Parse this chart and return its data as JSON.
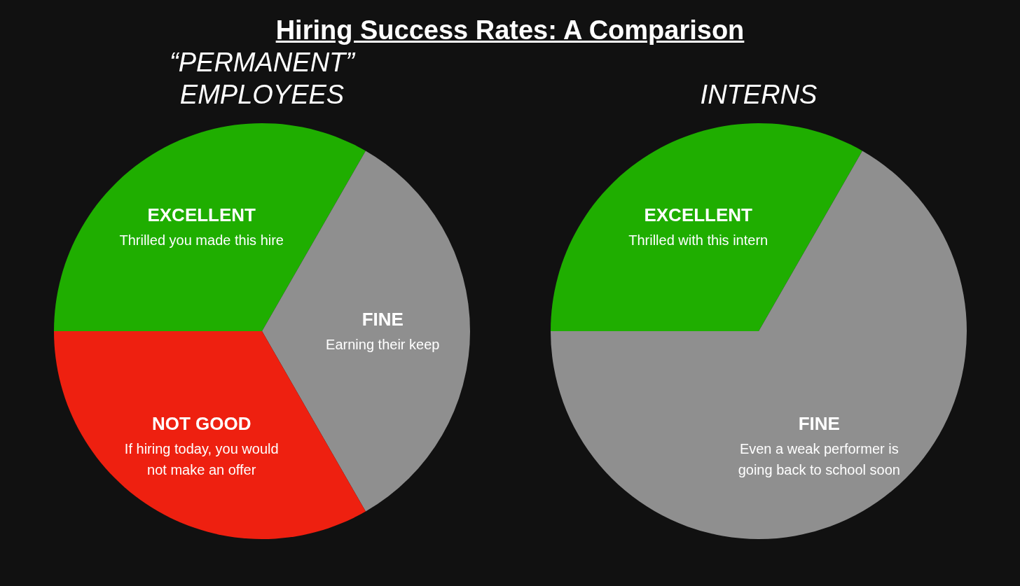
{
  "chart_data": [
    {
      "type": "other",
      "title": "Hiring Success Rates: A Comparison"
    },
    {
      "type": "pie",
      "title": "“PERMANENT” EMPLOYEES",
      "categories": [
        "EXCELLENT",
        "FINE",
        "NOT GOOD"
      ],
      "values": [
        33.3,
        33.4,
        33.3
      ],
      "colors": [
        "#1fae00",
        "#8f8f8f",
        "#ee2010"
      ],
      "annotations": [
        {
          "text": "Thrilled you made this hire",
          "x": "EXCELLENT"
        },
        {
          "text": "Earning their keep",
          "x": "FINE"
        },
        {
          "text": "If hiring today, you would\nnot make an offer",
          "x": "NOT GOOD"
        }
      ]
    },
    {
      "type": "pie",
      "title": "INTERNS",
      "categories": [
        "EXCELLENT",
        "FINE"
      ],
      "values": [
        33.3,
        66.7
      ],
      "colors": [
        "#1fae00",
        "#8f8f8f"
      ],
      "annotations": [
        {
          "text": "Thrilled with this intern",
          "x": "EXCELLENT"
        },
        {
          "text": "Even a weak performer is\ngoing back to school soon",
          "x": "FINE"
        }
      ]
    }
  ]
}
